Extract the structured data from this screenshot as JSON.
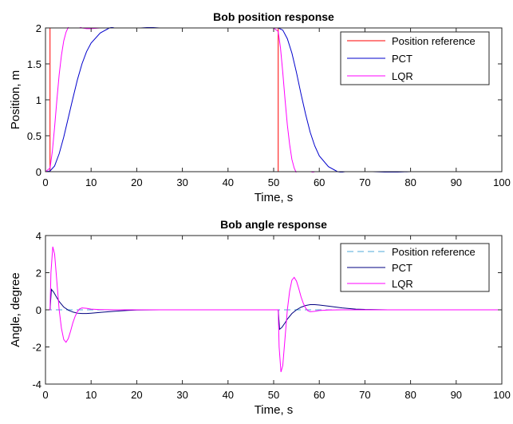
{
  "chart_data": [
    {
      "type": "line",
      "title": "Bob position response",
      "xlabel": "Time, s",
      "ylabel": "Position, m",
      "xlim": [
        0,
        100
      ],
      "ylim": [
        0,
        2
      ],
      "xticks": [
        "0",
        "10",
        "20",
        "30",
        "40",
        "50",
        "60",
        "70",
        "80",
        "90",
        "100"
      ],
      "yticks": [
        "0",
        "0.5",
        "1",
        "1.5",
        "2"
      ],
      "grid": false,
      "legend_position": "top-right",
      "series": [
        {
          "name": "Position reference",
          "color": "#ff0000",
          "dash": "solid",
          "x": [
            0,
            1,
            1,
            51,
            51,
            100
          ],
          "y": [
            0,
            0,
            2,
            2,
            0,
            0
          ]
        },
        {
          "name": "PCT",
          "color": "#0000cc",
          "dash": "solid",
          "x": [
            0,
            1,
            2,
            3,
            4,
            5,
            6,
            7,
            8,
            9,
            10,
            12,
            14,
            16,
            18,
            20,
            25,
            30,
            40,
            50,
            51,
            52,
            53,
            54,
            55,
            56,
            57,
            58,
            59,
            60,
            62,
            64,
            66,
            68,
            70,
            75,
            80,
            90,
            100
          ],
          "y": [
            0,
            0.01,
            0.08,
            0.25,
            0.48,
            0.75,
            1.02,
            1.28,
            1.5,
            1.67,
            1.79,
            1.93,
            2.0,
            2.03,
            2.03,
            2.02,
            2.0,
            2.0,
            2.0,
            2.0,
            2.0,
            1.97,
            1.85,
            1.65,
            1.38,
            1.08,
            0.8,
            0.55,
            0.36,
            0.22,
            0.07,
            0.0,
            -0.02,
            -0.025,
            -0.02,
            -0.01,
            0.0,
            0.0,
            0.0
          ]
        },
        {
          "name": "LQR",
          "color": "#ff00ff",
          "dash": "solid",
          "x": [
            0,
            1,
            1.5,
            2,
            2.5,
            3,
            3.5,
            4,
            4.5,
            5,
            5.5,
            6,
            6.5,
            7,
            8,
            9,
            10,
            12,
            15,
            20,
            30,
            40,
            50,
            51,
            51.5,
            52,
            52.5,
            53,
            53.5,
            54,
            54.5,
            55,
            55.5,
            56,
            57,
            58,
            59,
            60,
            65,
            70,
            80,
            100
          ],
          "y": [
            0,
            0.05,
            0.28,
            0.62,
            1.0,
            1.35,
            1.62,
            1.82,
            1.94,
            2.01,
            2.04,
            2.05,
            2.04,
            2.03,
            2.0,
            1.99,
            1.99,
            2.0,
            2.0,
            2.0,
            2.0,
            2.0,
            2.0,
            1.95,
            1.72,
            1.38,
            1.0,
            0.65,
            0.38,
            0.17,
            0.05,
            -0.02,
            -0.05,
            -0.06,
            -0.04,
            -0.02,
            0.0,
            0.0,
            0.0,
            0.0,
            0.0,
            0.0
          ]
        }
      ]
    },
    {
      "type": "line",
      "title": "Bob angle response",
      "xlabel": "Time, s",
      "ylabel": "Angle, degree",
      "xlim": [
        0,
        100
      ],
      "ylim": [
        -4,
        4
      ],
      "xticks": [
        "0",
        "10",
        "20",
        "30",
        "40",
        "50",
        "60",
        "70",
        "80",
        "90",
        "100"
      ],
      "yticks": [
        "-4",
        "-2",
        "0",
        "2",
        "4"
      ],
      "grid": false,
      "legend_position": "top-right",
      "series": [
        {
          "name": "Position reference",
          "color": "#4fa8d8",
          "dash": "dashed",
          "x": [
            0,
            100
          ],
          "y": [
            0,
            0
          ]
        },
        {
          "name": "PCT",
          "color": "#000080",
          "dash": "solid",
          "x": [
            0,
            1,
            1.3,
            1.8,
            2.5,
            3,
            4,
            5,
            6,
            7,
            8,
            9,
            10,
            12,
            15,
            18,
            20,
            25,
            30,
            40,
            50,
            51,
            51.3,
            51.8,
            52.5,
            53,
            54,
            55,
            56,
            57,
            58,
            59,
            60,
            62,
            65,
            68,
            70,
            75,
            80,
            100
          ],
          "y": [
            0,
            0,
            1.1,
            0.95,
            0.65,
            0.45,
            0.15,
            -0.02,
            -0.12,
            -0.18,
            -0.2,
            -0.2,
            -0.18,
            -0.14,
            -0.08,
            -0.03,
            -0.01,
            0,
            0,
            0,
            0,
            0,
            -1.05,
            -0.95,
            -0.7,
            -0.5,
            -0.2,
            0.0,
            0.14,
            0.23,
            0.28,
            0.28,
            0.26,
            0.2,
            0.1,
            0.04,
            0.02,
            0,
            0,
            0
          ]
        },
        {
          "name": "LQR",
          "color": "#ff00ff",
          "dash": "solid",
          "x": [
            0,
            1,
            1.2,
            1.6,
            2,
            2.5,
            3,
            3.5,
            4,
            4.5,
            5,
            5.5,
            6,
            6.5,
            7,
            7.5,
            8,
            9,
            10,
            12,
            15,
            20,
            30,
            40,
            50,
            51,
            51.2,
            51.6,
            52,
            52.5,
            53,
            53.5,
            54,
            54.5,
            55,
            55.5,
            56,
            56.5,
            57,
            57.5,
            58,
            59,
            60,
            62,
            65,
            70,
            100
          ],
          "y": [
            0,
            0,
            2.0,
            3.4,
            3.0,
            1.5,
            0.0,
            -1.0,
            -1.6,
            -1.75,
            -1.55,
            -1.15,
            -0.7,
            -0.35,
            -0.1,
            0.05,
            0.1,
            0.08,
            0.04,
            0.01,
            0,
            0,
            0,
            0,
            0,
            0,
            -2.0,
            -3.35,
            -3.0,
            -1.5,
            0.0,
            1.0,
            1.6,
            1.75,
            1.55,
            1.15,
            0.7,
            0.35,
            0.1,
            -0.05,
            -0.1,
            -0.08,
            -0.04,
            -0.01,
            0,
            0,
            0
          ]
        }
      ]
    }
  ]
}
